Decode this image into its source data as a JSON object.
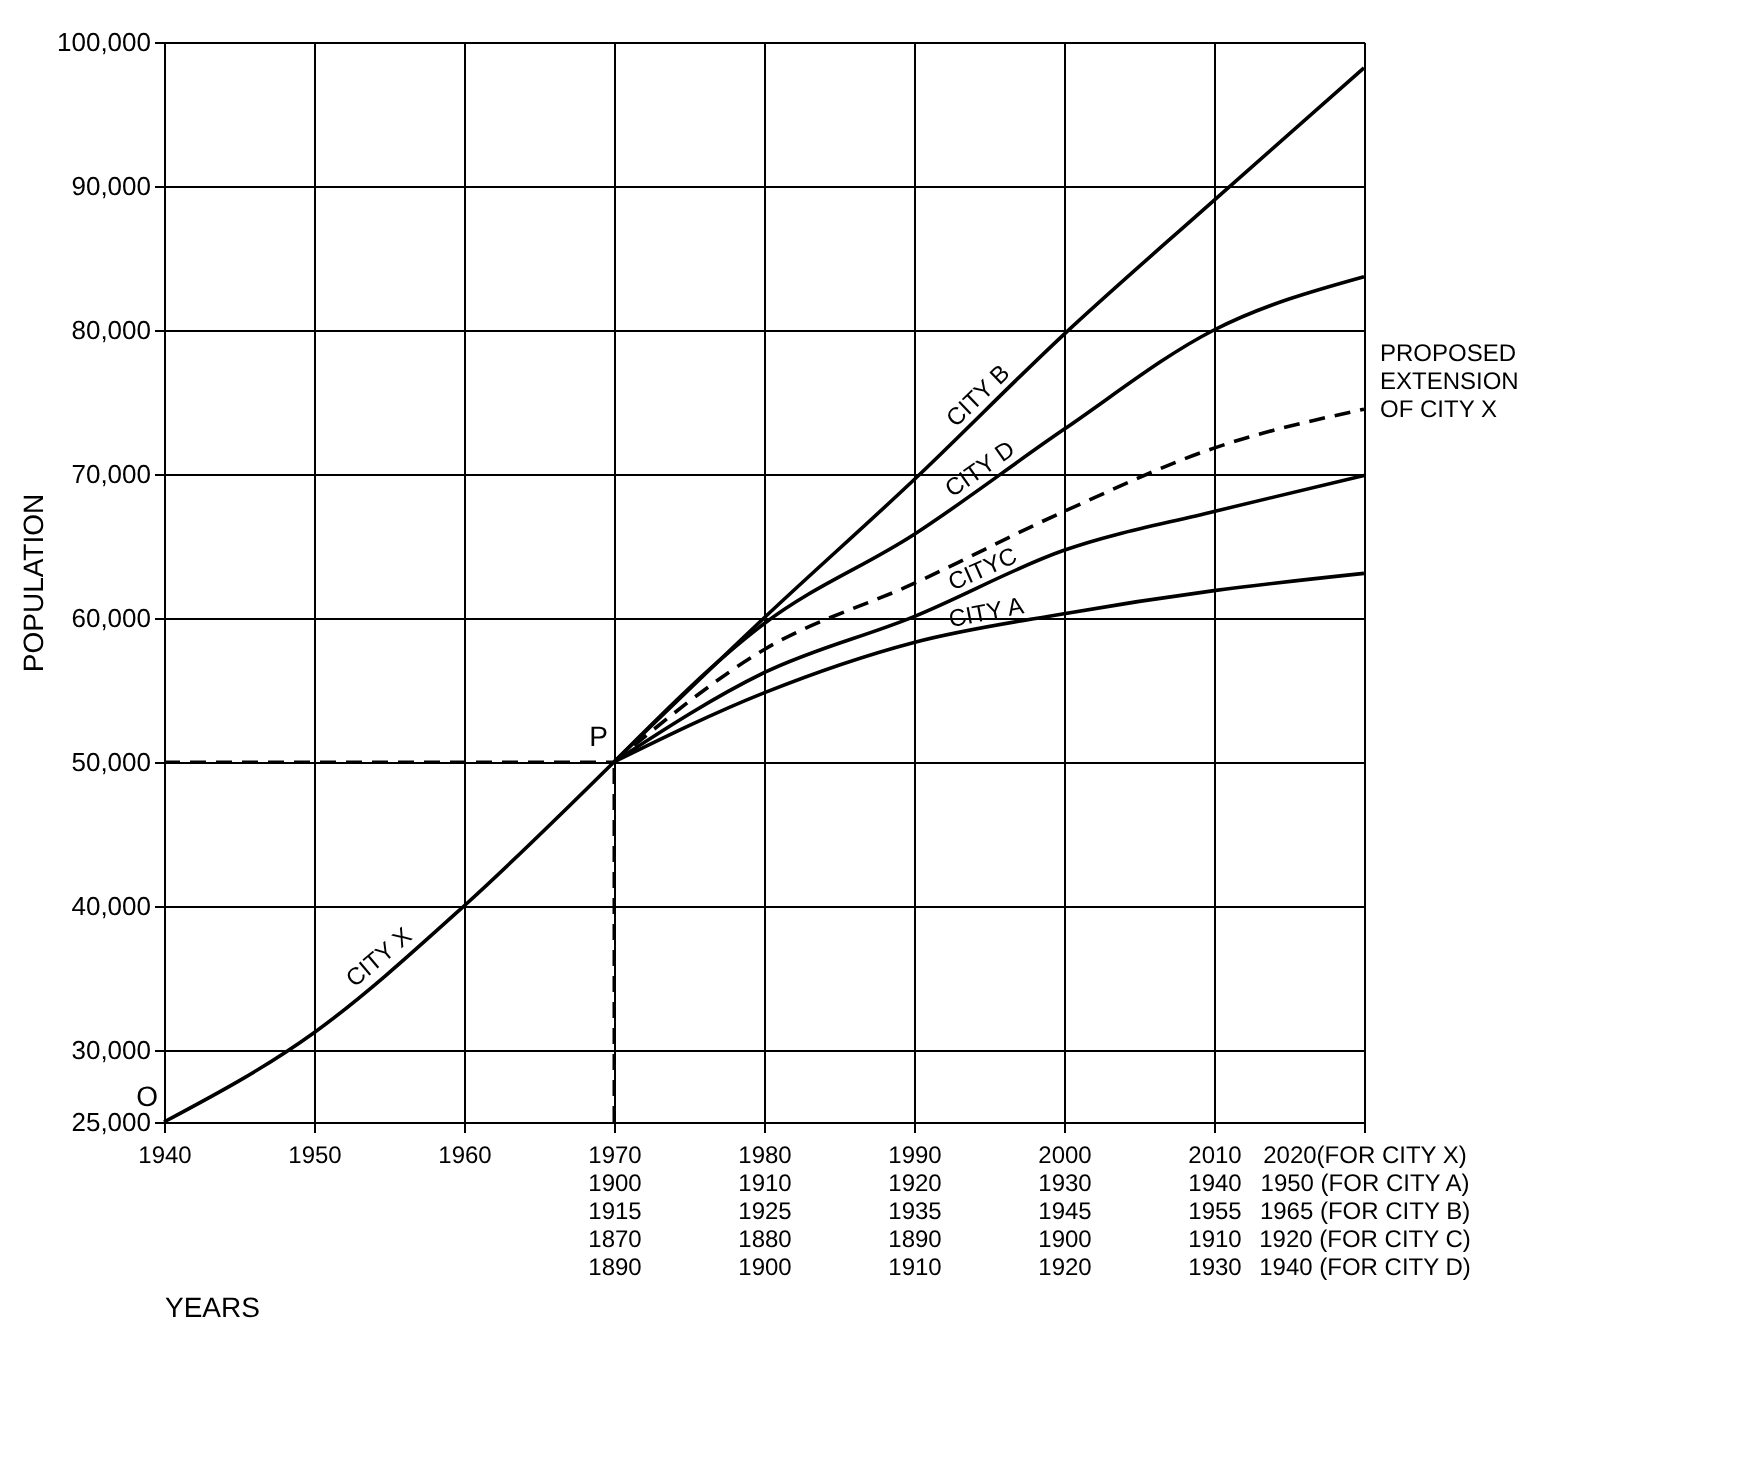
{
  "chart_data": {
    "type": "line",
    "xlabel": "YEARS",
    "ylabel": "POPULATION",
    "xlim": [
      1940,
      2020
    ],
    "ylim": [
      25000,
      100000
    ],
    "xticks": [
      1940,
      1950,
      1960,
      {
        "value": 1970,
        "label": "1970\n1900\n1915\n1870\n1890"
      },
      {
        "value": 1980,
        "label": "1980\n1910\n1925\n1880\n1900"
      },
      {
        "value": 1990,
        "label": "1990\n1920\n1935\n1890\n1910"
      },
      {
        "value": 2000,
        "label": "2000\n1930\n1945\n1900\n1920"
      },
      {
        "value": 2010,
        "label": "2010\n1940\n1955\n1910\n1930"
      },
      {
        "value": 2020,
        "label": "2020(FOR CITY X)\n1950 (FOR CITY A)\n1965 (FOR CITY B)\n1920 (FOR CITY C)\n1940 (FOR CITY D)"
      }
    ],
    "yticks": [
      {
        "value": 25000,
        "label": "25,000"
      },
      {
        "value": 30000,
        "label": "30,000"
      },
      {
        "value": 40000,
        "label": "40,000"
      },
      {
        "value": 50000,
        "label": "50,000"
      },
      {
        "value": 60000,
        "label": "60,000"
      },
      {
        "value": 70000,
        "label": "70,000"
      },
      {
        "value": 80000,
        "label": "80,000"
      },
      {
        "value": 90000,
        "label": "90,000"
      },
      {
        "value": 100000,
        "label": "100,000"
      }
    ],
    "grid": true,
    "marker": "none",
    "series": [
      {
        "name": "CITY X",
        "color": "#000000",
        "line_style": "solid",
        "x": [
          1940,
          1950,
          1960,
          1970
        ],
        "values": [
          25000,
          31200,
          40000,
          50000
        ]
      },
      {
        "name": "CITY B",
        "color": "#000000",
        "line_style": "solid",
        "x": [
          1970,
          1980,
          1990,
          2000,
          2010,
          2020
        ],
        "values": [
          50000,
          60000,
          69600,
          79700,
          89000,
          98200
        ]
      },
      {
        "name": "CITY D",
        "color": "#000000",
        "line_style": "solid",
        "x": [
          1970,
          1980,
          1990,
          2000,
          2010,
          2020
        ],
        "values": [
          50000,
          59600,
          65800,
          73100,
          80000,
          83700
        ]
      },
      {
        "name": "PROPOSED EXTENSION OF CITY X",
        "color": "#000000",
        "line_style": "dashed",
        "x": [
          1970,
          1980,
          1990,
          2000,
          2010,
          2020
        ],
        "values": [
          50000,
          57800,
          62400,
          67400,
          71800,
          74500
        ]
      },
      {
        "name": "CITYC",
        "color": "#000000",
        "line_style": "solid",
        "x": [
          1970,
          1980,
          1990,
          2000,
          2010,
          2020
        ],
        "values": [
          50000,
          56200,
          60100,
          64700,
          67400,
          69900
        ]
      },
      {
        "name": "CITY A",
        "color": "#000000",
        "line_style": "solid",
        "x": [
          1970,
          1980,
          1990,
          2000,
          2010,
          2020
        ],
        "values": [
          50000,
          54800,
          58300,
          60300,
          61900,
          63100
        ]
      }
    ],
    "ref_lines": [
      {
        "axis": "x",
        "value": 1970,
        "line_style": "dashed"
      },
      {
        "axis": "y",
        "value": 50000,
        "line_style": "dashed"
      }
    ],
    "annotations": [
      {
        "text": "P",
        "x": 1970,
        "y": 50000
      },
      {
        "text": "O",
        "x": 1940,
        "y": 25000
      }
    ]
  }
}
